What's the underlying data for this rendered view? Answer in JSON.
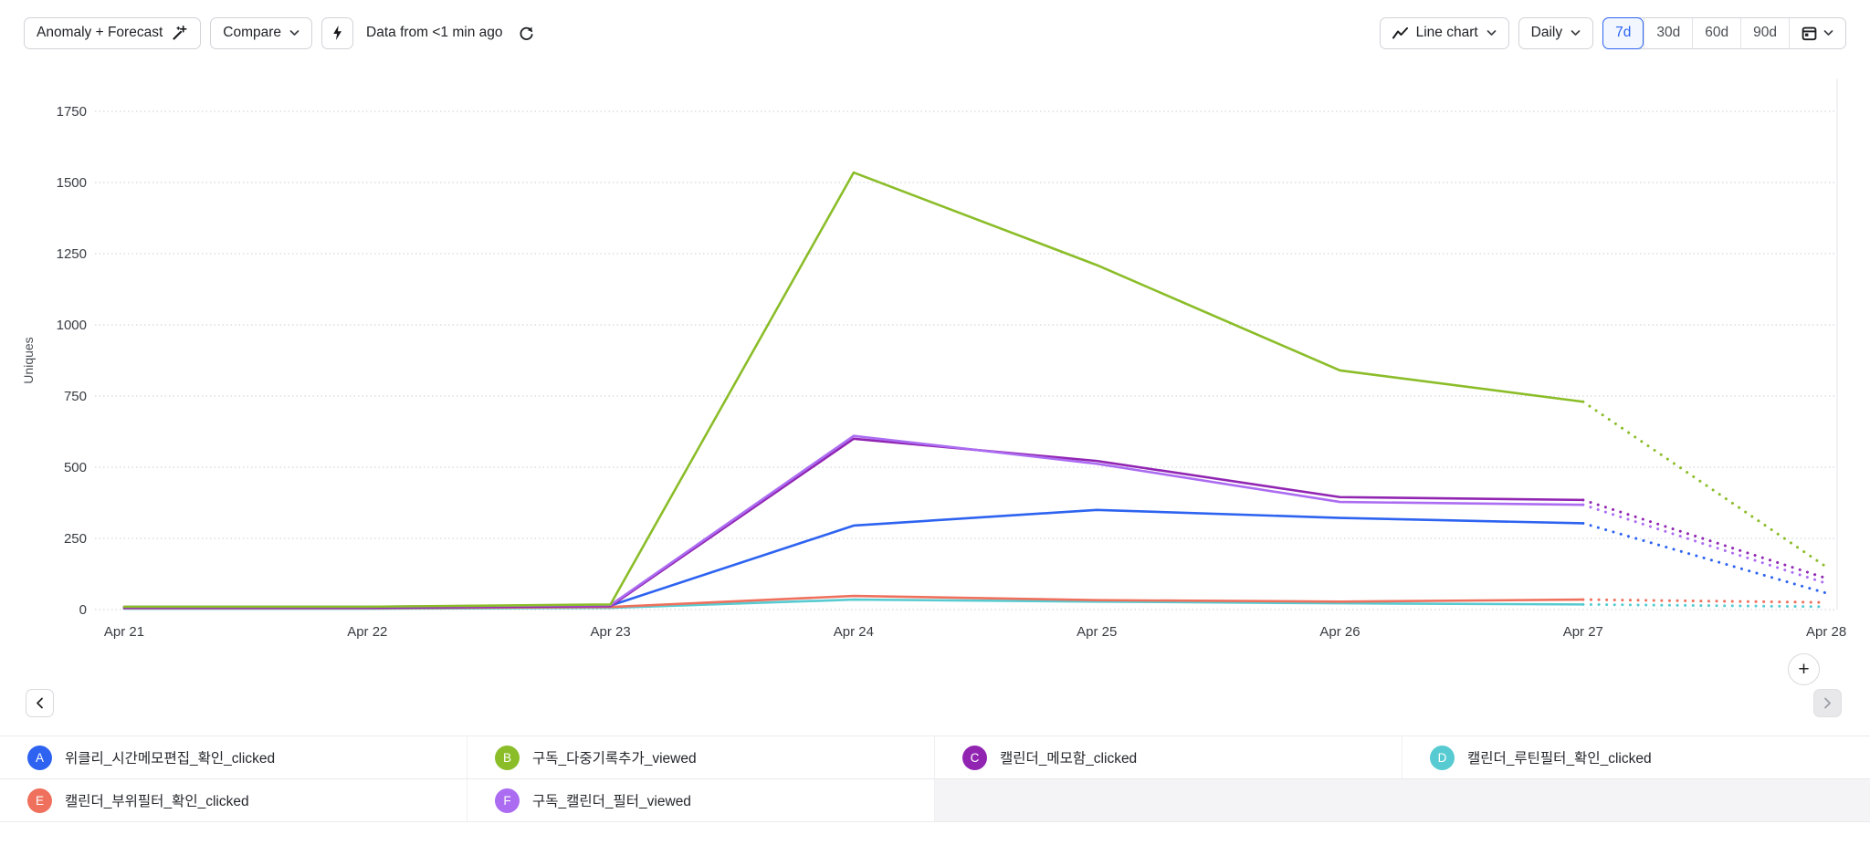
{
  "toolbar": {
    "anomaly_forecast_label": "Anomaly + Forecast",
    "compare_label": "Compare",
    "freshness_text": "Data from <1 min ago",
    "chart_type_label": "Line chart",
    "granularity_label": "Daily",
    "range_options": [
      "7d",
      "30d",
      "60d",
      "90d"
    ],
    "selected_range": "7d",
    "accent_color": "#2b63f2"
  },
  "nav": {
    "prev_label": "‹",
    "next_label": "›",
    "plus_label": "+"
  },
  "legend": {
    "items": [
      {
        "letter": "A",
        "label": "위클리_시간메모편집_확인_clicked",
        "color": "#2d63f0"
      },
      {
        "letter": "B",
        "label": "구독_다중기록추가_viewed",
        "color": "#8bbd29"
      },
      {
        "letter": "C",
        "label": "캘린더_메모함_clicked",
        "color": "#9125b2"
      },
      {
        "letter": "D",
        "label": "캘린더_루틴필터_확인_clicked",
        "color": "#57cbd1"
      },
      {
        "letter": "E",
        "label": "캘린더_부위필터_확인_clicked",
        "color": "#ef705c"
      },
      {
        "letter": "F",
        "label": "구독_캘린더_필터_viewed",
        "color": "#ab6cf2"
      }
    ]
  },
  "chart_data": {
    "type": "line",
    "title": "",
    "xlabel": "",
    "ylabel": "Uniques",
    "grid": "horizontal-dotted",
    "legend_position": "bottom",
    "ylim": [
      0,
      1750
    ],
    "yticks": [
      0,
      250,
      500,
      750,
      1000,
      1250,
      1500,
      1750
    ],
    "categories": [
      "Apr 21",
      "Apr 22",
      "Apr 23",
      "Apr 24",
      "Apr 25",
      "Apr 26",
      "Apr 27",
      "Apr 28"
    ],
    "actual_range": [
      "Apr 21",
      "Apr 27"
    ],
    "forecast_range": [
      "Apr 27",
      "Apr 28"
    ],
    "series": [
      {
        "name": "위클리_시간메모편집_확인_clicked",
        "letter": "A",
        "color": "#2d63f0",
        "values": [
          8,
          8,
          14,
          295,
          350,
          322,
          303
        ],
        "forecast_value": 58
      },
      {
        "name": "구독_다중기록추가_viewed",
        "letter": "B",
        "color": "#8bbd29",
        "values": [
          10,
          10,
          18,
          1535,
          1210,
          840,
          730
        ],
        "forecast_value": 150
      },
      {
        "name": "캘린더_메모함_clicked",
        "letter": "C",
        "color": "#9125b2",
        "values": [
          6,
          6,
          12,
          600,
          522,
          395,
          385
        ],
        "forecast_value": 110
      },
      {
        "name": "캘린더_루틴필터_확인_clicked",
        "letter": "D",
        "color": "#57cbd1",
        "values": [
          3,
          3,
          6,
          35,
          28,
          22,
          18
        ],
        "forecast_value": 10
      },
      {
        "name": "캘린더_부위필터_확인_clicked",
        "letter": "E",
        "color": "#ef705c",
        "values": [
          5,
          5,
          9,
          48,
          33,
          28,
          35
        ],
        "forecast_value": 25
      },
      {
        "name": "구독_캘린더_필터_viewed",
        "letter": "F",
        "color": "#ab6cf2",
        "values": [
          10,
          10,
          16,
          610,
          512,
          378,
          368
        ],
        "forecast_value": 92
      }
    ]
  }
}
